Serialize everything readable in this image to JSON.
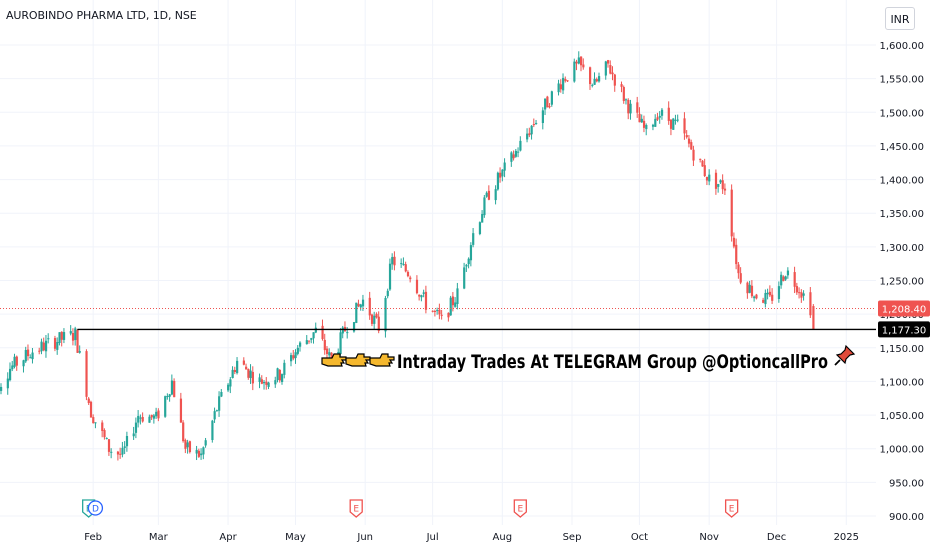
{
  "header": {
    "symbol_title": "AUROBINDO PHARMA LTD, 1D, NSE",
    "currency_button": "INR"
  },
  "banner": {
    "text": "Intraday Trades At TELEGRAM Group @OptioncallPro",
    "leading_icons": [
      "pointing-hand-icon",
      "pointing-hand-icon",
      "pointing-hand-icon"
    ],
    "trailing_icon": "pushpin-icon"
  },
  "price_labels": {
    "last_price": "1,208.40",
    "level_price": "1,177.30"
  },
  "events": [
    {
      "type": "earnings",
      "glyph": "E",
      "month_pos": "Jan end",
      "x_date": "2024-01-30"
    },
    {
      "type": "dividend",
      "glyph": "D",
      "month_pos": "Jan end",
      "x_date": "2024-02-02"
    },
    {
      "type": "earnings",
      "glyph": "E",
      "x_date": "2024-05-28"
    },
    {
      "type": "earnings",
      "glyph": "E",
      "x_date": "2024-08-09"
    },
    {
      "type": "earnings",
      "glyph": "E",
      "x_date": "2024-11-11"
    }
  ],
  "colors": {
    "up": "#26a69a",
    "down": "#ef5350",
    "last_price_bg": "#ef5350",
    "level_bg": "#000000",
    "event_earnings": "#ef5350",
    "event_earnings_teal": "#26a69a",
    "event_dividend": "#2962ff"
  },
  "chart_data": {
    "type": "candlestick",
    "symbol": "AUROBINDO PHARMA LTD",
    "interval": "1D",
    "exchange": "NSE",
    "currency": "INR",
    "y_axis": {
      "ticks": [
        "1,600.00",
        "1,550.00",
        "1,500.00",
        "1,450.00",
        "1,400.00",
        "1,350.00",
        "1,300.00",
        "1,250.00",
        "1,200.00",
        "1,150.00",
        "1,100.00",
        "1,050.00",
        "1,000.00",
        "950.00",
        "900.00"
      ],
      "tick_values": [
        1600,
        1550,
        1500,
        1450,
        1400,
        1350,
        1300,
        1250,
        1200,
        1150,
        1100,
        1050,
        1000,
        950,
        900
      ],
      "range": [
        900,
        1600
      ]
    },
    "x_axis": {
      "ticks": [
        "Feb",
        "Mar",
        "Apr",
        "May",
        "Jun",
        "Jul",
        "Aug",
        "Sep",
        "Oct",
        "Nov",
        "Dec",
        "2025"
      ],
      "tick_dates": [
        "2024-02-01",
        "2024-03-01",
        "2024-04-01",
        "2024-05-01",
        "2024-06-01",
        "2024-07-01",
        "2024-08-01",
        "2024-09-01",
        "2024-10-01",
        "2024-11-01",
        "2024-12-01",
        "2025-01-01"
      ],
      "range": [
        "2023-12-18",
        "2025-01-24"
      ]
    },
    "grid": true,
    "last_price": 1208.4,
    "horizontal_level": 1177.3,
    "horizontal_level_start": "2024-01-25",
    "price_path": [
      [
        "2023-12-18",
        1080
      ],
      [
        "2023-12-26",
        1120
      ],
      [
        "2024-01-05",
        1145
      ],
      [
        "2024-01-15",
        1160
      ],
      [
        "2024-01-24",
        1170
      ],
      [
        "2024-01-31",
        1055
      ],
      [
        "2024-02-08",
        1000
      ],
      [
        "2024-02-14",
        990
      ],
      [
        "2024-02-21",
        1050
      ],
      [
        "2024-02-29",
        1045
      ],
      [
        "2024-03-07",
        1100
      ],
      [
        "2024-03-13",
        1000
      ],
      [
        "2024-03-20",
        990
      ],
      [
        "2024-03-27",
        1060
      ],
      [
        "2024-04-05",
        1130
      ],
      [
        "2024-04-15",
        1100
      ],
      [
        "2024-04-24",
        1110
      ],
      [
        "2024-05-02",
        1150
      ],
      [
        "2024-05-10",
        1175
      ],
      [
        "2024-05-17",
        1130
      ],
      [
        "2024-05-24",
        1185
      ],
      [
        "2024-05-31",
        1220
      ],
      [
        "2024-06-07",
        1180
      ],
      [
        "2024-06-13",
        1280
      ],
      [
        "2024-06-21",
        1260
      ],
      [
        "2024-06-28",
        1215
      ],
      [
        "2024-07-05",
        1190
      ],
      [
        "2024-07-12",
        1230
      ],
      [
        "2024-07-19",
        1320
      ],
      [
        "2024-07-26",
        1380
      ],
      [
        "2024-08-05",
        1430
      ],
      [
        "2024-08-16",
        1490
      ],
      [
        "2024-08-28",
        1550
      ],
      [
        "2024-09-04",
        1570
      ],
      [
        "2024-09-11",
        1540
      ],
      [
        "2024-09-17",
        1570
      ],
      [
        "2024-09-26",
        1510
      ],
      [
        "2024-10-04",
        1470
      ],
      [
        "2024-10-09",
        1500
      ],
      [
        "2024-10-18",
        1480
      ],
      [
        "2024-10-25",
        1440
      ],
      [
        "2024-11-01",
        1400
      ],
      [
        "2024-11-08",
        1390
      ],
      [
        "2024-11-14",
        1260
      ],
      [
        "2024-11-21",
        1230
      ],
      [
        "2024-11-28",
        1220
      ],
      [
        "2024-12-05",
        1265
      ],
      [
        "2024-12-11",
        1240
      ],
      [
        "2024-12-16",
        1210
      ]
    ]
  }
}
